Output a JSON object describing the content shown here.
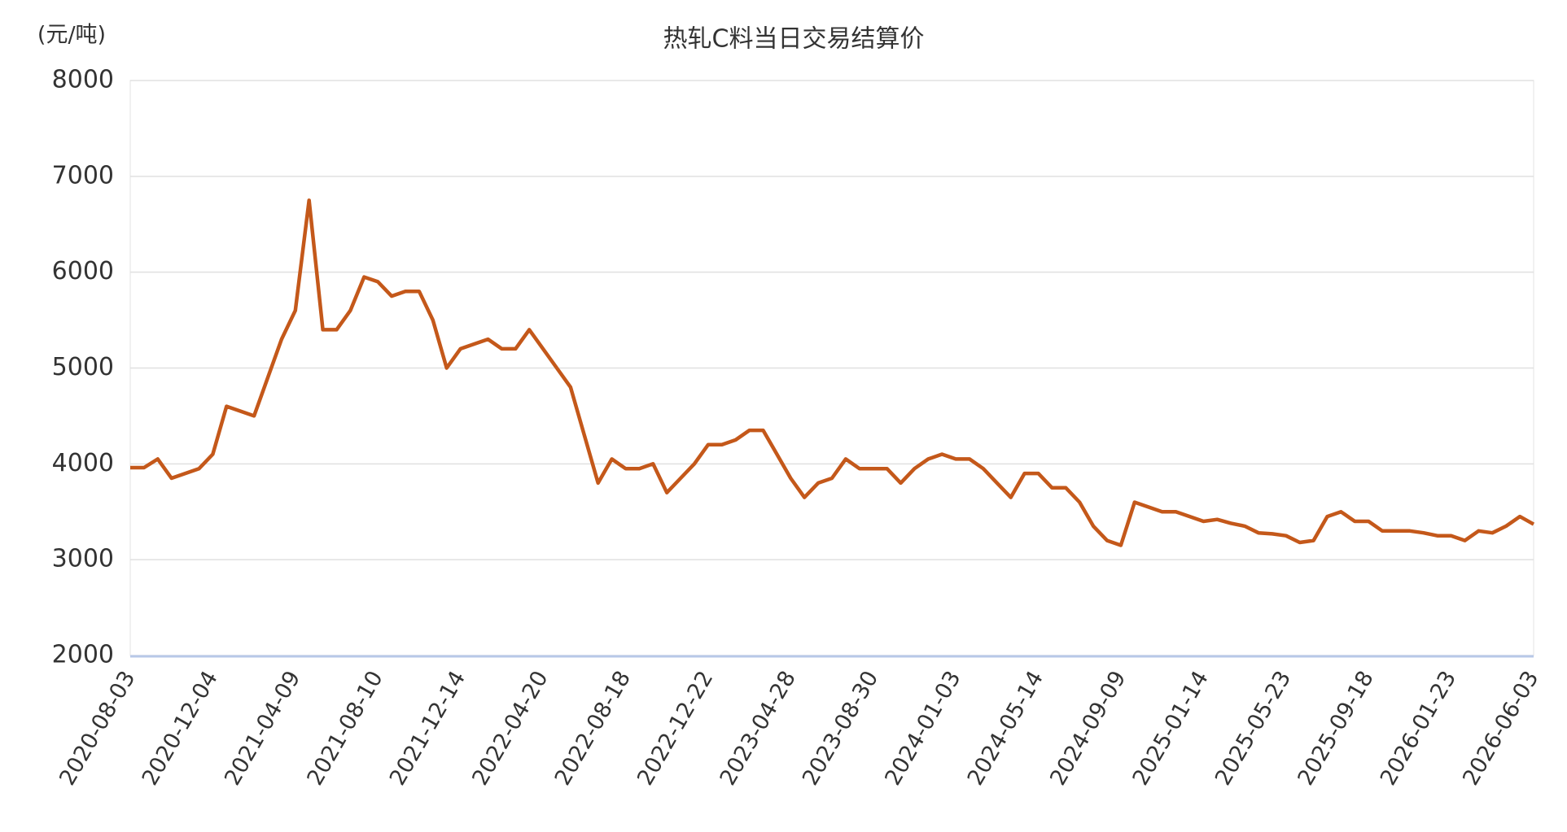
{
  "chart_data": {
    "type": "line",
    "title": "热轧C料当日交易结算价",
    "y_label": "(元/吨)",
    "categories": [
      "2020-08-03",
      null,
      null,
      null,
      null,
      null,
      "2020-12-04",
      null,
      null,
      null,
      null,
      null,
      "2021-04-09",
      null,
      null,
      null,
      null,
      null,
      "2021-08-10",
      null,
      null,
      null,
      null,
      null,
      "2021-12-14",
      null,
      null,
      null,
      null,
      null,
      "2022-04-20",
      null,
      null,
      null,
      null,
      null,
      "2022-08-18",
      null,
      null,
      null,
      null,
      null,
      "2022-12-22",
      null,
      null,
      null,
      null,
      null,
      "2023-04-28",
      null,
      null,
      null,
      null,
      null,
      "2023-08-30",
      null,
      null,
      null,
      null,
      null,
      "2024-01-03",
      null,
      null,
      null,
      null,
      null,
      "2024-05-14",
      null,
      null,
      null,
      null,
      null,
      "2024-09-09",
      null,
      null,
      null,
      null,
      null,
      "2025-01-14",
      null,
      null,
      null,
      null,
      null,
      "2025-05-23",
      null,
      null,
      null,
      null,
      null,
      "2025-09-18",
      null,
      null,
      null,
      null,
      null,
      "2026-01-23",
      null,
      null,
      null,
      null,
      null,
      "2026-06-03"
    ],
    "series": [
      {
        "name": "热轧C料当日交易结算价",
        "color": "#c4581a",
        "values": [
          3960,
          3960,
          4050,
          3850,
          3900,
          3950,
          4100,
          4600,
          4550,
          4500,
          4900,
          5300,
          5600,
          6750,
          5400,
          5400,
          5600,
          5950,
          5900,
          5750,
          5800,
          5800,
          5500,
          5000,
          5200,
          5250,
          5300,
          5200,
          5200,
          5400,
          5200,
          5000,
          4800,
          4300,
          3800,
          4050,
          3950,
          3950,
          4000,
          3700,
          3850,
          4000,
          4200,
          4200,
          4250,
          4350,
          4350,
          4100,
          3850,
          3650,
          3800,
          3850,
          4050,
          3950,
          3950,
          3950,
          3800,
          3950,
          4050,
          4100,
          4050,
          4050,
          3950,
          3800,
          3650,
          3900,
          3900,
          3750,
          3750,
          3600,
          3350,
          3200,
          3150,
          3600,
          3550,
          3500,
          3500,
          3450,
          3400,
          3420,
          3380,
          3350,
          3280,
          3270,
          3250,
          3180,
          3200,
          3450,
          3500,
          3400,
          3400,
          3300,
          3300,
          3300,
          3280,
          3250,
          3250,
          3200,
          3300,
          3280,
          3350,
          3450,
          3370
        ]
      }
    ],
    "ylim": [
      2000,
      8000
    ],
    "yticks": [
      2000,
      3000,
      4000,
      5000,
      6000,
      7000,
      8000
    ],
    "grid": true
  }
}
